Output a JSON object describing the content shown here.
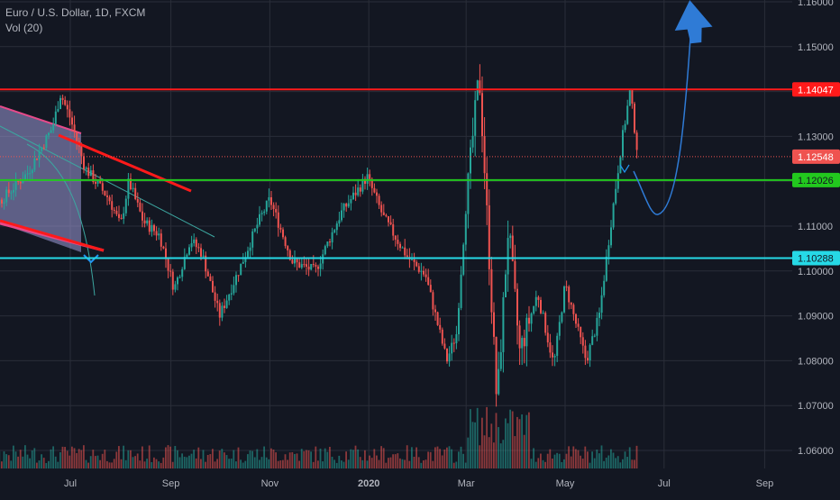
{
  "legend": {
    "symbol": "Euro / U.S. Dollar, 1D, FXCM",
    "volume": "Vol (20)"
  },
  "chart_data": {
    "type": "candlestick",
    "symbol": "Euro / U.S. Dollar",
    "interval": "1D",
    "source": "FXCM",
    "y_axis": {
      "ylim": [
        1.055,
        1.16
      ],
      "ticks": [
        "1.16000",
        "1.15000",
        "1.14000",
        "1.13000",
        "1.12000",
        "1.11000",
        "1.10000",
        "1.09000",
        "1.08000",
        "1.07000",
        "1.06000"
      ]
    },
    "x_axis": {
      "ticks": [
        "Jul",
        "Sep",
        "Nov",
        "2020",
        "Mar",
        "May",
        "Jul",
        "Sep"
      ]
    },
    "horizontal_levels": [
      {
        "label": "1.14047",
        "value": 1.14047,
        "color": "#ff1a1a"
      },
      {
        "label": "1.12548",
        "value": 1.12548,
        "color": "#ef5350"
      },
      {
        "label": "1.12026",
        "value": 1.12026,
        "color": "#22c81e"
      },
      {
        "label": "1.10288",
        "value": 1.10288,
        "color": "#26d9e6"
      }
    ],
    "price_path": [
      [
        "2019-05-01",
        1.112
      ],
      [
        "2019-05-20",
        1.116
      ],
      [
        "2019-06-05",
        1.122
      ],
      [
        "2019-06-20",
        1.132
      ],
      [
        "2019-06-25",
        1.1395
      ],
      [
        "2019-07-01",
        1.134
      ],
      [
        "2019-07-10",
        1.123
      ],
      [
        "2019-07-25",
        1.116
      ],
      [
        "2019-08-01",
        1.11
      ],
      [
        "2019-08-06",
        1.12
      ],
      [
        "2019-08-15",
        1.111
      ],
      [
        "2019-08-25",
        1.108
      ],
      [
        "2019-09-03",
        1.096
      ],
      [
        "2019-09-13",
        1.107
      ],
      [
        "2019-09-20",
        1.104
      ],
      [
        "2019-10-01",
        1.09
      ],
      [
        "2019-10-15",
        1.102
      ],
      [
        "2019-10-25",
        1.111
      ],
      [
        "2019-11-01",
        1.116
      ],
      [
        "2019-11-15",
        1.102
      ],
      [
        "2019-11-29",
        1.1
      ],
      [
        "2019-12-15",
        1.113
      ],
      [
        "2019-12-31",
        1.121
      ],
      [
        "2020-01-10",
        1.112
      ],
      [
        "2020-01-25",
        1.103
      ],
      [
        "2020-02-05",
        1.099
      ],
      [
        "2020-02-18",
        1.08
      ],
      [
        "2020-02-24",
        1.086
      ],
      [
        "2020-03-01",
        1.115
      ],
      [
        "2020-03-09",
        1.144
      ],
      [
        "2020-03-12",
        1.125
      ],
      [
        "2020-03-20",
        1.07
      ],
      [
        "2020-03-27",
        1.11
      ],
      [
        "2020-04-03",
        1.082
      ],
      [
        "2020-04-14",
        1.095
      ],
      [
        "2020-04-24",
        1.079
      ],
      [
        "2020-05-01",
        1.097
      ],
      [
        "2020-05-14",
        1.08
      ],
      [
        "2020-05-22",
        1.09
      ],
      [
        "2020-05-29",
        1.11
      ],
      [
        "2020-06-05",
        1.129
      ],
      [
        "2020-06-10",
        1.14
      ],
      [
        "2020-06-15",
        1.1255
      ]
    ],
    "volume_color": "#26a69a",
    "projection_color": "#2f7bd6"
  }
}
